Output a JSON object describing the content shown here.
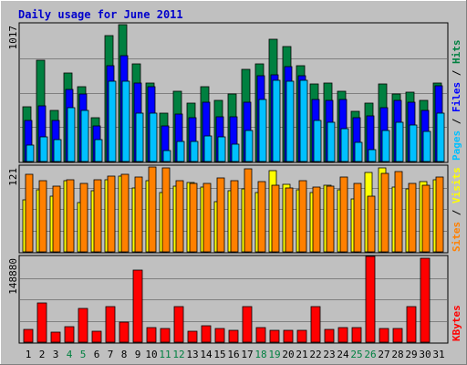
{
  "chart_data": [
    {
      "type": "bar",
      "panel": "pages-files-hits",
      "title": "Daily usage for June 2011",
      "ylabel_top_tick": "1017",
      "ylim": [
        0,
        1017
      ],
      "side_labels": [
        "Pages",
        "Files",
        "Hits"
      ],
      "categories": [
        "1",
        "2",
        "3",
        "4",
        "5",
        "6",
        "7",
        "8",
        "9",
        "10",
        "11",
        "12",
        "13",
        "14",
        "15",
        "16",
        "17",
        "18",
        "19",
        "20",
        "21",
        "22",
        "23",
        "24",
        "25",
        "26",
        "27",
        "28",
        "29",
        "30",
        "31"
      ],
      "weekend_days": [
        "4",
        "5",
        "11",
        "12",
        "18",
        "19",
        "25",
        "26"
      ],
      "series": [
        {
          "name": "Hits",
          "color": "#008040",
          "values": [
            405,
            750,
            380,
            650,
            550,
            320,
            930,
            1010,
            720,
            580,
            360,
            520,
            430,
            550,
            450,
            500,
            680,
            720,
            900,
            850,
            710,
            570,
            580,
            520,
            370,
            430,
            570,
            500,
            510,
            450,
            580
          ]
        },
        {
          "name": "Files",
          "color": "#0000ff",
          "values": [
            300,
            410,
            300,
            530,
            500,
            260,
            710,
            780,
            580,
            550,
            260,
            350,
            320,
            440,
            330,
            330,
            440,
            630,
            640,
            700,
            630,
            460,
            450,
            460,
            320,
            340,
            400,
            450,
            440,
            380,
            560
          ]
        },
        {
          "name": "Pages",
          "color": "#00c0ff",
          "values": [
            120,
            180,
            160,
            400,
            380,
            160,
            590,
            590,
            360,
            360,
            80,
            150,
            150,
            190,
            180,
            130,
            230,
            460,
            600,
            590,
            600,
            300,
            290,
            240,
            140,
            90,
            230,
            290,
            270,
            220,
            360
          ]
        }
      ]
    },
    {
      "type": "bar",
      "panel": "sites-visits",
      "ylabel_top_tick": "121",
      "ylim": [
        0,
        121
      ],
      "side_labels": [
        "Sites",
        "Visits"
      ],
      "categories": [
        "1",
        "2",
        "3",
        "4",
        "5",
        "6",
        "7",
        "8",
        "9",
        "10",
        "11",
        "12",
        "13",
        "14",
        "15",
        "16",
        "17",
        "18",
        "19",
        "20",
        "21",
        "22",
        "23",
        "24",
        "25",
        "26",
        "27",
        "28",
        "29",
        "30",
        "31"
      ],
      "series": [
        {
          "name": "Visits",
          "color": "#ffff00",
          "values": [
            74,
            88,
            79,
            100,
            69,
            86,
            102,
            107,
            90,
            100,
            84,
            93,
            98,
            92,
            71,
            86,
            89,
            84,
            115,
            95,
            88,
            84,
            94,
            87,
            75,
            112,
            118,
            92,
            89,
            99,
            102
          ]
        },
        {
          "name": "Sites",
          "color": "#ff8000",
          "values": [
            110,
            101,
            93,
            102,
            96,
            102,
            107,
            109,
            105,
            120,
            118,
            101,
            96,
            97,
            104,
            100,
            117,
            99,
            94,
            90,
            101,
            92,
            93,
            106,
            97,
            78,
            111,
            113,
            96,
            94,
            105
          ]
        }
      ]
    },
    {
      "type": "bar",
      "panel": "kbytes",
      "ylabel_top_tick": "148880",
      "ylim": [
        0,
        148880
      ],
      "side_labels": [
        "KBytes"
      ],
      "categories": [
        "1",
        "2",
        "3",
        "4",
        "5",
        "6",
        "7",
        "8",
        "9",
        "10",
        "11",
        "12",
        "13",
        "14",
        "15",
        "16",
        "17",
        "18",
        "19",
        "20",
        "21",
        "22",
        "23",
        "24",
        "25",
        "26",
        "27",
        "28",
        "29",
        "30",
        "31"
      ],
      "series": [
        {
          "name": "KBytes",
          "color": "#ff0000",
          "values": [
            22000,
            68000,
            17000,
            27000,
            59000,
            19000,
            61000,
            35000,
            125000,
            26000,
            23000,
            61000,
            19000,
            28000,
            23000,
            21000,
            61000,
            25000,
            20000,
            20000,
            20000,
            62000,
            22000,
            26000,
            26000,
            148880,
            24000,
            23000,
            61000,
            145000,
            0
          ]
        }
      ]
    }
  ]
}
